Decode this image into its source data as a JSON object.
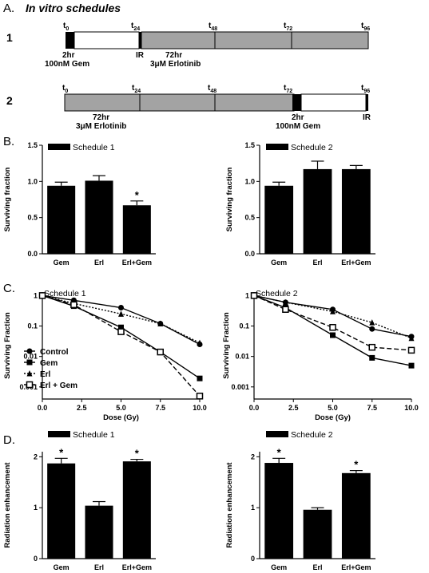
{
  "heading": "In vitro schedules",
  "panel_letters": {
    "a": "A.",
    "b": "B.",
    "c": "C.",
    "d": "D."
  },
  "colors": {
    "timeline_gray": "#a3a3a3",
    "bar": "#000000",
    "line": "#000000"
  },
  "schedules": [
    {
      "number": "1",
      "time_labels": [
        {
          "base": "t",
          "sub": "0"
        },
        {
          "base": "t",
          "sub": "24"
        },
        {
          "base": "t",
          "sub": "48"
        },
        {
          "base": "t",
          "sub": "72"
        },
        {
          "base": "t",
          "sub": "96"
        }
      ],
      "labels": {
        "gem_time": "2hr",
        "gem_dose": "100nM Gem",
        "ir": "IR",
        "erl_time": "72hr",
        "erl_dose": "3μM Erlotinib"
      }
    },
    {
      "number": "2",
      "time_labels": [
        {
          "base": "t",
          "sub": "0"
        },
        {
          "base": "t",
          "sub": "24"
        },
        {
          "base": "t",
          "sub": "48"
        },
        {
          "base": "t",
          "sub": "72"
        },
        {
          "base": "t",
          "sub": "96"
        }
      ],
      "labels": {
        "erl_time": "72hr",
        "erl_dose": "3μM Erlotinib",
        "gem_time": "2hr",
        "gem_dose": "100nM Gem",
        "ir": "IR"
      }
    }
  ],
  "chart_data": [
    {
      "id": "B1",
      "type": "bar",
      "legend": "Schedule 1",
      "categories": [
        "Gem",
        "Erl",
        "Erl+Gem"
      ],
      "values": [
        0.94,
        1.01,
        0.67
      ],
      "errors": [
        0.05,
        0.07,
        0.06
      ],
      "significant": [
        "",
        "",
        "*"
      ],
      "ylabel": "Surviving fraction",
      "ylim": [
        0,
        1.5
      ],
      "yticks": [
        0.0,
        0.5,
        1.0,
        1.5
      ],
      "ytick_labels": [
        "0.0",
        "0.5",
        "1.0",
        "1.5"
      ]
    },
    {
      "id": "B2",
      "type": "bar",
      "legend": "Schedule 2",
      "categories": [
        "Gem",
        "Erl",
        "Erl+Gem"
      ],
      "values": [
        0.94,
        1.17,
        1.17
      ],
      "errors": [
        0.05,
        0.11,
        0.05
      ],
      "significant": [
        "",
        "",
        ""
      ],
      "ylabel": "Surviving fraction",
      "ylim": [
        0,
        1.5
      ],
      "yticks": [
        0.0,
        0.5,
        1.0,
        1.5
      ],
      "ytick_labels": [
        "0.0",
        "0.5",
        "1.0",
        "1.5"
      ]
    },
    {
      "id": "C1",
      "type": "line",
      "title": "Schedule 1",
      "xlabel": "Dose (Gy)",
      "ylabel": "Surviving Fraction",
      "yscale": "log",
      "xlim": [
        0,
        10
      ],
      "ylim": [
        0.0004,
        1.3
      ],
      "xticks": [
        0,
        2.5,
        5,
        7.5,
        10
      ],
      "xtick_labels": [
        "0.0",
        "2.5",
        "5.0",
        "7.5",
        "10.0"
      ],
      "yticks": [
        1,
        0.1,
        0.01,
        0.001
      ],
      "ytick_labels": [
        "1",
        "0.1",
        "0.01",
        "0.001"
      ],
      "x": [
        0,
        2,
        5,
        7.5,
        10
      ],
      "series": [
        {
          "name": "Control",
          "marker": "circle",
          "dash": "solid",
          "values": [
            1,
            0.7,
            0.4,
            0.12,
            0.025
          ]
        },
        {
          "name": "Gem",
          "marker": "square",
          "dash": "solid",
          "values": [
            1,
            0.45,
            0.09,
            0.014,
            0.0019
          ]
        },
        {
          "name": "Erl",
          "marker": "triangle",
          "dash": "dot",
          "values": [
            1,
            0.55,
            0.25,
            0.12,
            0.028
          ]
        },
        {
          "name": "Erl + Gem",
          "marker": "open-square",
          "dash": "dash",
          "values": [
            1,
            0.5,
            0.065,
            0.014,
            0.0005
          ]
        }
      ]
    },
    {
      "id": "C2",
      "type": "line",
      "title": "Schedule 2",
      "xlabel": "Dose (Gy)",
      "ylabel": "Surviving Fraction",
      "yscale": "log",
      "xlim": [
        0,
        10
      ],
      "ylim": [
        0.0004,
        1.3
      ],
      "xticks": [
        0,
        2.5,
        5,
        7.5,
        10
      ],
      "xtick_labels": [
        "0.0",
        "2.5",
        "5.0",
        "7.5",
        "10.0"
      ],
      "yticks": [
        1,
        0.1,
        0.01,
        0.001
      ],
      "ytick_labels": [
        "1",
        "0.1",
        "0.01",
        "0.001"
      ],
      "x": [
        0,
        2,
        5,
        7.5,
        10
      ],
      "series": [
        {
          "name": "Control",
          "marker": "circle",
          "dash": "solid",
          "values": [
            1,
            0.6,
            0.35,
            0.08,
            0.045
          ]
        },
        {
          "name": "Gem",
          "marker": "square",
          "dash": "solid",
          "values": [
            1,
            0.4,
            0.05,
            0.009,
            0.005
          ]
        },
        {
          "name": "Erl",
          "marker": "triangle",
          "dash": "dot",
          "values": [
            1,
            0.6,
            0.3,
            0.13,
            0.04
          ]
        },
        {
          "name": "Erl + Gem",
          "marker": "open-square",
          "dash": "dash",
          "values": [
            1,
            0.35,
            0.09,
            0.02,
            0.016
          ]
        }
      ]
    },
    {
      "id": "D1",
      "type": "bar",
      "legend": "Schedule 1",
      "categories": [
        "Gem",
        "Erl",
        "Erl+Gem"
      ],
      "values": [
        1.87,
        1.04,
        1.91
      ],
      "errors": [
        0.1,
        0.08,
        0.04
      ],
      "significant": [
        "*",
        "",
        "*"
      ],
      "ylabel": "Radiation enhancement",
      "ylim": [
        0,
        2.1
      ],
      "yticks": [
        0,
        1,
        2
      ],
      "ytick_labels": [
        "0",
        "1",
        "2"
      ]
    },
    {
      "id": "D2",
      "type": "bar",
      "legend": "Schedule 2",
      "categories": [
        "Gem",
        "Erl",
        "Erl+Gem"
      ],
      "values": [
        1.88,
        0.96,
        1.68
      ],
      "errors": [
        0.09,
        0.04,
        0.05
      ],
      "significant": [
        "*",
        "",
        "*"
      ],
      "ylabel": "Radiation enhancement",
      "ylim": [
        0,
        2.1
      ],
      "yticks": [
        0,
        1,
        2
      ],
      "ytick_labels": [
        "0",
        "1",
        "2"
      ]
    }
  ]
}
